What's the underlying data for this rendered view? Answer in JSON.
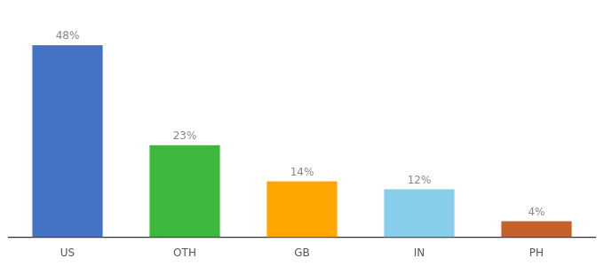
{
  "chart_data": {
    "type": "bar",
    "categories": [
      "US",
      "OTH",
      "GB",
      "IN",
      "PH"
    ],
    "values": [
      48,
      23,
      14,
      12,
      4
    ],
    "value_labels": [
      "48%",
      "23%",
      "14%",
      "12%",
      "4%"
    ],
    "colors": [
      "#4472C4",
      "#3DB83D",
      "#FFA500",
      "#87CEEB",
      "#C4612A"
    ],
    "ylim": [
      0,
      54
    ],
    "grid": false,
    "data_labels": true,
    "tick_labels": "x"
  }
}
